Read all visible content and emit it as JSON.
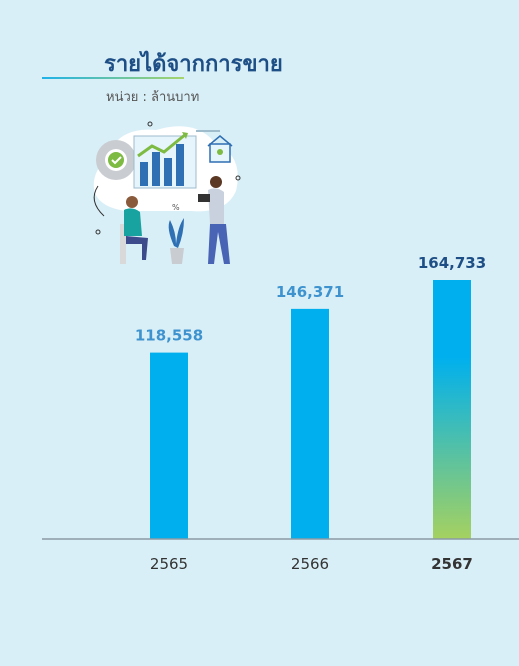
{
  "header": {
    "title": "รายได้จากการขาย",
    "unit": "หน่วย : ล้านบาท"
  },
  "illustration": {
    "icon": "analytics-people-illustration"
  },
  "chart_data": {
    "type": "bar",
    "categories": [
      "2565",
      "2566",
      "2567"
    ],
    "values": [
      118558,
      146371,
      164733
    ],
    "value_labels": [
      "118,558",
      "146,371",
      "164,733"
    ],
    "highlight_index": 2,
    "ylim": [
      0,
      164733
    ],
    "grid": false,
    "colors": {
      "bar": "#00b0ee",
      "highlight_top": "#00b0ee",
      "highlight_bottom": "#a5d160",
      "label": "#3e93cf",
      "highlight_label": "#1d4f86",
      "axis": "#8a9aa5",
      "tick": "#333333"
    }
  }
}
